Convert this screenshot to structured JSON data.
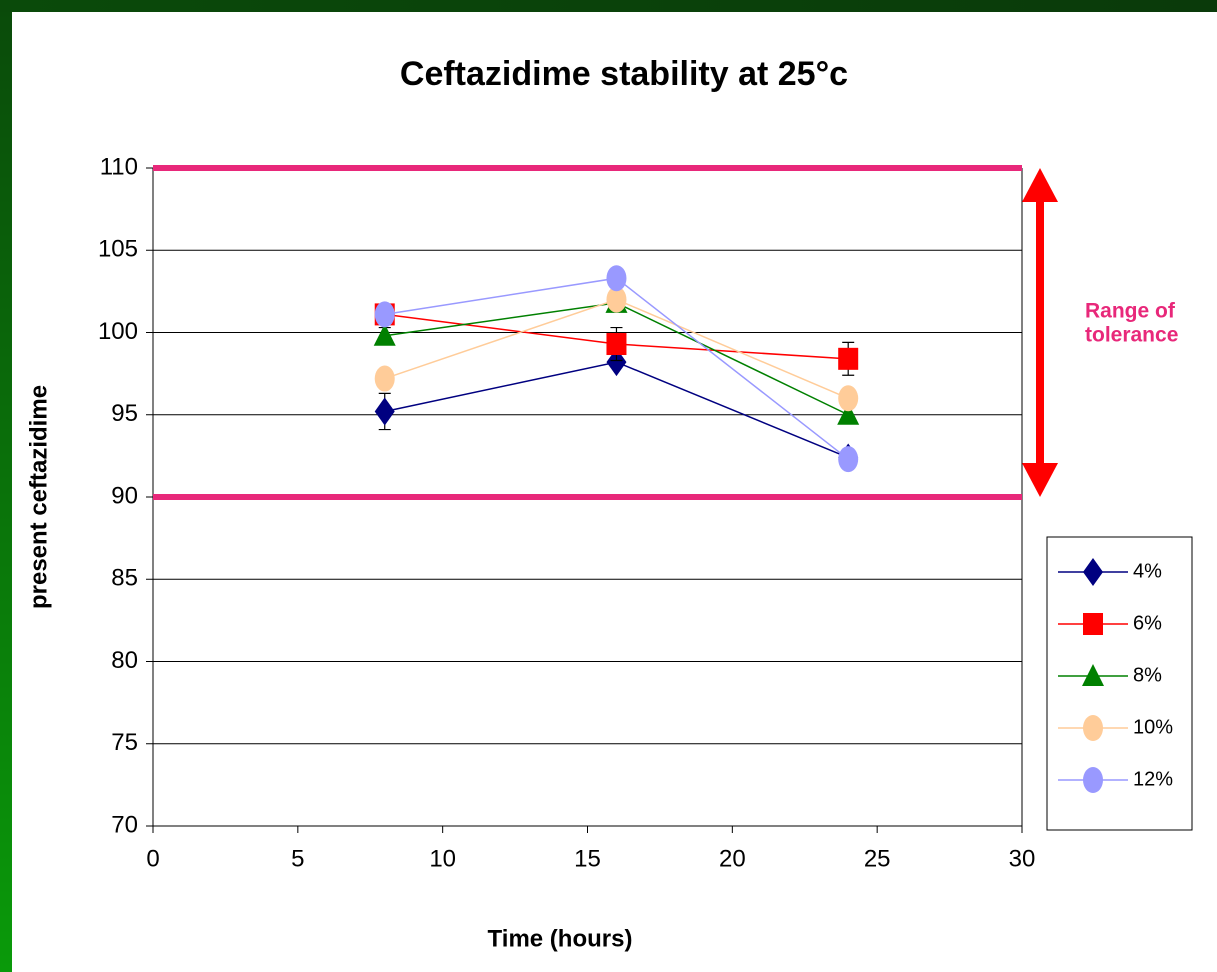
{
  "chart_data": {
    "type": "line",
    "title": "Ceftazidime stability at 25°c",
    "xlabel": "Time (hours)",
    "ylabel": "present ceftazidime",
    "x": [
      8,
      16,
      24
    ],
    "series": [
      {
        "name": "4%",
        "color": "#000080",
        "marker": "diamond",
        "values": [
          95.2,
          98.2,
          92.4
        ],
        "errors": [
          1.1,
          0.3,
          0.3
        ]
      },
      {
        "name": "6%",
        "color": "#ff0000",
        "marker": "square",
        "values": [
          101.1,
          99.3,
          98.4
        ],
        "errors": [
          0.3,
          1.0,
          1.0
        ]
      },
      {
        "name": "8%",
        "color": "#008000",
        "marker": "triangle",
        "values": [
          99.8,
          101.8,
          95.0
        ],
        "errors": [
          0.5,
          0.4,
          0.5
        ]
      },
      {
        "name": "10%",
        "color": "#ffcc99",
        "marker": "circle",
        "values": [
          97.2,
          102.0,
          96.0
        ],
        "errors": [
          0.3,
          0.3,
          0.5
        ]
      },
      {
        "name": "12%",
        "color": "#9999ff",
        "marker": "circle",
        "values": [
          101.1,
          103.3,
          92.3
        ],
        "errors": [
          0.3,
          0.3,
          0.3
        ]
      }
    ],
    "reference_lines": [
      {
        "value": 110,
        "color": "#e8287a"
      },
      {
        "value": 90,
        "color": "#e8287a"
      }
    ],
    "annotation": {
      "lines": [
        "Range of",
        "tolerance"
      ],
      "color": "#e8287a",
      "arrow_color": "#ff0000"
    },
    "xlim": [
      0,
      30
    ],
    "xticks": [
      0,
      5,
      10,
      15,
      20,
      25,
      30
    ],
    "ylim": [
      70,
      110
    ],
    "yticks": [
      70,
      75,
      80,
      85,
      90,
      95,
      100,
      105,
      110
    ],
    "grid": true,
    "legend": "right"
  }
}
